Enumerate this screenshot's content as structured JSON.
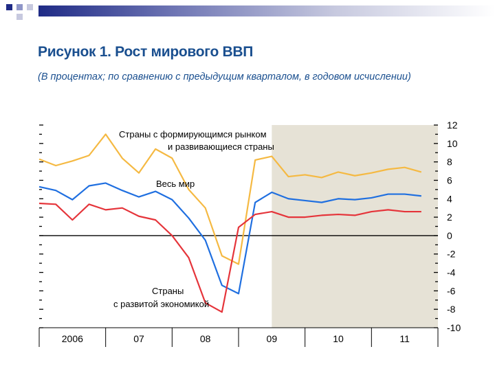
{
  "slide": {
    "title": "Рисунок 1. Рост мирового ВВП",
    "subtitle": "(В процентах; по сравнению с предыдущим кварталом, в годовом исчислении)",
    "accent_colors": [
      "#1f2b86",
      "#4a55a0",
      "#8f96c8",
      "#c7c9df"
    ]
  },
  "chart_data": {
    "type": "line",
    "title": "Рисунок 1. Рост мирового ВВП",
    "subtitle": "(В процентах; по сравнению с предыдущим кварталом, в годовом исчислении)",
    "x_labels": [
      "2006",
      "07",
      "08",
      "09",
      "10",
      "11"
    ],
    "x": [
      2006.0,
      2006.25,
      2006.5,
      2006.75,
      2007.0,
      2007.25,
      2007.5,
      2007.75,
      2008.0,
      2008.25,
      2008.5,
      2008.75,
      2009.0,
      2009.25,
      2009.5,
      2009.75,
      2010.0,
      2010.25,
      2010.5,
      2010.75,
      2011.0,
      2011.25,
      2011.5,
      2011.75
    ],
    "ylim": [
      -10,
      12
    ],
    "y_ticks": [
      "12",
      "10",
      "8",
      "6",
      "4",
      "2",
      "0",
      "-2",
      "-4",
      "-6",
      "-8",
      "-10"
    ],
    "forecast_shading_from": 2009.5,
    "series": [
      {
        "name": "Страны с формирующимся рынком и развивающиеся страны",
        "color": "#f5b942",
        "values": [
          8.3,
          7.6,
          8.1,
          8.7,
          11.0,
          8.4,
          6.8,
          9.4,
          8.4,
          5.0,
          3.0,
          -2.2,
          -3.1,
          8.2,
          8.6,
          6.4,
          6.6,
          6.3,
          6.9,
          6.5,
          6.8,
          7.2,
          7.4,
          6.9
        ]
      },
      {
        "name": "Весь мир",
        "color": "#1f6fe0",
        "values": [
          5.3,
          4.9,
          3.9,
          5.4,
          5.7,
          4.9,
          4.2,
          4.8,
          3.9,
          1.9,
          -0.5,
          -5.4,
          -6.3,
          3.6,
          4.7,
          4.0,
          3.8,
          3.6,
          4.0,
          3.9,
          4.1,
          4.5,
          4.5,
          4.3
        ]
      },
      {
        "name": "Страны с развитой экономикой",
        "color": "#e5343a",
        "values": [
          3.5,
          3.4,
          1.7,
          3.4,
          2.8,
          3.0,
          2.1,
          1.7,
          0.0,
          -2.4,
          -7.3,
          -8.3,
          0.9,
          2.3,
          2.6,
          2.0,
          2.0,
          2.2,
          2.3,
          2.2,
          2.6,
          2.8,
          2.6,
          2.6
        ]
      }
    ],
    "annotations": {
      "emerging_line1": "Страны с формирующимся рынком",
      "emerging_line2": "и развивающиеся страны",
      "world": "Весь мир",
      "advanced_line1": "Страны",
      "advanced_line2": "с развитой экономикой"
    },
    "grid": false,
    "legend": "none"
  }
}
